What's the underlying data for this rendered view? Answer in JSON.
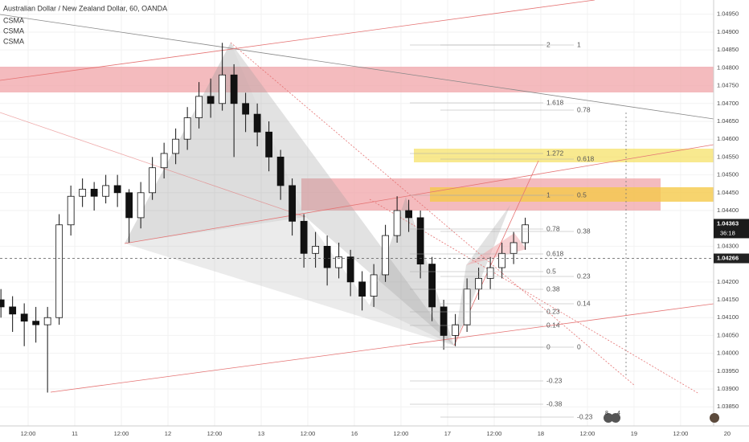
{
  "chart_data": {
    "type": "candlestick",
    "title": "Australian Dollar / New Zealand Dollar, 60, OANDA",
    "legend": [
      "CSMA",
      "CSMA",
      "CSMA"
    ],
    "xlim": [
      -7.24,
      176.5
    ],
    "ylim": [
      1.03774,
      1.0499
    ],
    "x": [
      -7,
      -4,
      -1,
      2,
      5,
      8,
      11,
      14,
      17,
      20,
      23,
      26,
      29,
      32,
      35,
      38,
      41,
      44,
      47,
      50,
      53,
      56,
      59,
      62,
      65,
      68,
      71,
      74,
      77,
      80,
      83,
      86,
      89,
      92,
      95,
      98,
      101,
      104,
      107,
      110,
      113,
      116,
      119,
      122,
      125,
      128
    ],
    "ohlc": [
      [
        1.0415,
        1.0418,
        1.041,
        1.0413
      ],
      [
        1.0413,
        1.0416,
        1.0406,
        1.0411
      ],
      [
        1.0411,
        1.0414,
        1.0402,
        1.0409
      ],
      [
        1.0409,
        1.0413,
        1.0403,
        1.0408
      ],
      [
        1.0408,
        1.0413,
        1.0389,
        1.041
      ],
      [
        1.041,
        1.0439,
        1.0408,
        1.0436
      ],
      [
        1.0436,
        1.0447,
        1.0433,
        1.0444
      ],
      [
        1.0444,
        1.0449,
        1.0441,
        1.0446
      ],
      [
        1.0446,
        1.0448,
        1.044,
        1.0444
      ],
      [
        1.0444,
        1.045,
        1.0442,
        1.0447
      ],
      [
        1.0447,
        1.045,
        1.0441,
        1.0445
      ],
      [
        1.0445,
        1.0446,
        1.0431,
        1.0438
      ],
      [
        1.0438,
        1.0448,
        1.0435,
        1.0445
      ],
      [
        1.0445,
        1.0455,
        1.0443,
        1.0452
      ],
      [
        1.0452,
        1.0459,
        1.0449,
        1.0456
      ],
      [
        1.0456,
        1.0463,
        1.0453,
        1.046
      ],
      [
        1.046,
        1.0469,
        1.0457,
        1.0466
      ],
      [
        1.0466,
        1.0476,
        1.0463,
        1.0472
      ],
      [
        1.0472,
        1.0477,
        1.0466,
        1.047
      ],
      [
        1.047,
        1.0487,
        1.0468,
        1.0478
      ],
      [
        1.0478,
        1.0481,
        1.0455,
        1.047
      ],
      [
        1.047,
        1.0473,
        1.0462,
        1.0467
      ],
      [
        1.0467,
        1.047,
        1.0458,
        1.0462
      ],
      [
        1.0462,
        1.0465,
        1.0451,
        1.0455
      ],
      [
        1.0455,
        1.0457,
        1.0443,
        1.0447
      ],
      [
        1.0447,
        1.0449,
        1.0433,
        1.0437
      ],
      [
        1.0437,
        1.0439,
        1.0424,
        1.0428
      ],
      [
        1.0428,
        1.0434,
        1.0424,
        1.043
      ],
      [
        1.043,
        1.0433,
        1.0419,
        1.0424
      ],
      [
        1.0424,
        1.0431,
        1.0421,
        1.0427
      ],
      [
        1.0427,
        1.0429,
        1.0416,
        1.042
      ],
      [
        1.042,
        1.0423,
        1.0412,
        1.0416
      ],
      [
        1.0416,
        1.0425,
        1.0413,
        1.0422
      ],
      [
        1.0422,
        1.0436,
        1.042,
        1.0433
      ],
      [
        1.0433,
        1.0444,
        1.0431,
        1.044
      ],
      [
        1.044,
        1.0443,
        1.0434,
        1.0438
      ],
      [
        1.0438,
        1.044,
        1.0421,
        1.0425
      ],
      [
        1.0425,
        1.0427,
        1.0409,
        1.0413
      ],
      [
        1.0413,
        1.0415,
        1.0401,
        1.0405
      ],
      [
        1.0405,
        1.0411,
        1.0402,
        1.0408
      ],
      [
        1.0408,
        1.0421,
        1.0406,
        1.0418
      ],
      [
        1.0418,
        1.0424,
        1.0415,
        1.0421
      ],
      [
        1.0421,
        1.0427,
        1.0418,
        1.0424
      ],
      [
        1.0424,
        1.0431,
        1.0421,
        1.0428
      ],
      [
        1.0428,
        1.0434,
        1.0425,
        1.0431
      ],
      [
        1.0431,
        1.0438,
        1.0429,
        1.0436
      ]
    ],
    "up_color": "#ffffff",
    "down_color": "#111111",
    "yticks": [
      {
        "value": 1.0495,
        "label": "1.04950"
      },
      {
        "value": 1.049,
        "label": "1.04900"
      },
      {
        "value": 1.0485,
        "label": "1.04850"
      },
      {
        "value": 1.048,
        "label": "1.04800"
      },
      {
        "value": 1.0475,
        "label": "1.04750"
      },
      {
        "value": 1.047,
        "label": "1.04700"
      },
      {
        "value": 1.0465,
        "label": "1.04650"
      },
      {
        "value": 1.046,
        "label": "1.04600"
      },
      {
        "value": 1.0455,
        "label": "1.04550"
      },
      {
        "value": 1.045,
        "label": "1.04500"
      },
      {
        "value": 1.0445,
        "label": "1.04450"
      },
      {
        "value": 1.044,
        "label": "1.04400"
      },
      {
        "value": 1.043,
        "label": "1.04300"
      },
      {
        "value": 1.042,
        "label": "1.04200"
      },
      {
        "value": 1.0415,
        "label": "1.04150"
      },
      {
        "value": 1.041,
        "label": "1.04100"
      },
      {
        "value": 1.0405,
        "label": "1.04050"
      },
      {
        "value": 1.04,
        "label": "1.04000"
      },
      {
        "value": 1.0395,
        "label": "1.03950"
      },
      {
        "value": 1.039,
        "label": "1.03900"
      },
      {
        "value": 1.0385,
        "label": "1.03850"
      }
    ],
    "xticks": [
      {
        "value": 0,
        "label": "12:00"
      },
      {
        "value": 12,
        "label": "11"
      },
      {
        "value": 24,
        "label": "12:00"
      },
      {
        "value": 36,
        "label": "12"
      },
      {
        "value": 48,
        "label": "12:00"
      },
      {
        "value": 60,
        "label": "13"
      },
      {
        "value": 72,
        "label": "12:00"
      },
      {
        "value": 84,
        "label": "16"
      },
      {
        "value": 96,
        "label": "12:00"
      },
      {
        "value": 108,
        "label": "17"
      },
      {
        "value": 120,
        "label": "12:00"
      },
      {
        "value": 132,
        "label": "18"
      },
      {
        "value": 144,
        "label": "12:00"
      },
      {
        "value": 156,
        "label": "19"
      },
      {
        "value": 168,
        "label": "12:00"
      },
      {
        "value": 180,
        "label": "20"
      }
    ],
    "grid": true,
    "last_price": 1.04363,
    "countdown": "36:18",
    "crosshair_price": 1.04266,
    "annotations": [
      "2",
      "1",
      "1.618",
      "0.78",
      "1.272",
      "0.618",
      "1",
      "0.5",
      "0.78",
      "0.38",
      "0.618",
      "0.23",
      "0.5",
      "0.14",
      "0.38",
      "0.23",
      "0.14",
      "0",
      "0",
      "-0.23",
      "-0.38",
      "-0.23"
    ],
    "badges": [
      "8",
      "4"
    ]
  }
}
